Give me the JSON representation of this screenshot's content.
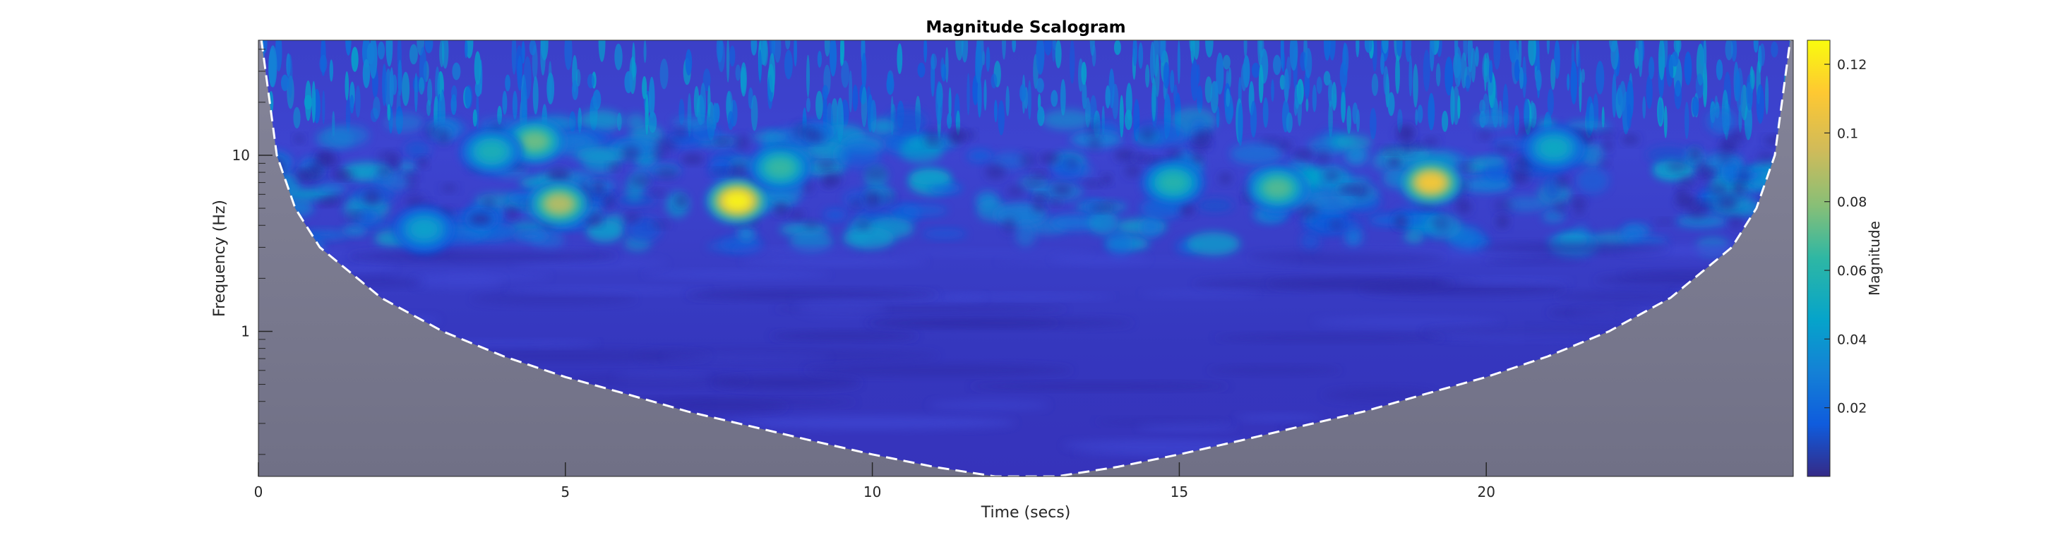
{
  "chart_data": {
    "type": "heatmap",
    "title": "Magnitude Scalogram",
    "xlabel": "Time (secs)",
    "ylabel": "Frequency (Hz)",
    "xlim": [
      0,
      25
    ],
    "ylim": [
      0.15,
      45
    ],
    "yscale": "log",
    "x_ticks": [
      0,
      5,
      10,
      15,
      20
    ],
    "x_tick_labels": [
      "0",
      "5",
      "10",
      "15",
      "20"
    ],
    "y_ticks": [
      1,
      10
    ],
    "y_tick_labels": [
      "1",
      "10"
    ],
    "colorbar": {
      "label": "Magnitude",
      "range": [
        0,
        0.127
      ],
      "ticks": [
        0.02,
        0.04,
        0.06,
        0.08,
        0.1,
        0.12
      ],
      "tick_labels": [
        "0.02",
        "0.04",
        "0.06",
        "0.08",
        "0.1",
        "0.12"
      ],
      "colormap": "parula"
    },
    "cone_of_influence": {
      "style": "white dashed",
      "outside_color": "#7a7a8e",
      "points": [
        [
          0.05,
          45
        ],
        [
          0.3,
          10
        ],
        [
          0.6,
          5
        ],
        [
          1,
          3
        ],
        [
          2,
          1.55
        ],
        [
          3,
          1
        ],
        [
          4,
          0.72
        ],
        [
          5,
          0.55
        ],
        [
          6,
          0.44
        ],
        [
          7,
          0.35
        ],
        [
          8,
          0.29
        ],
        [
          9,
          0.24
        ],
        [
          10,
          0.2
        ],
        [
          11,
          0.17
        ],
        [
          12,
          0.15
        ],
        [
          13,
          0.15
        ],
        [
          14,
          0.17
        ],
        [
          15,
          0.2
        ],
        [
          16,
          0.24
        ],
        [
          17,
          0.29
        ],
        [
          18,
          0.35
        ],
        [
          19,
          0.44
        ],
        [
          20,
          0.55
        ],
        [
          21,
          0.72
        ],
        [
          22,
          1
        ],
        [
          23,
          1.55
        ],
        [
          24,
          3
        ],
        [
          24.4,
          5
        ],
        [
          24.7,
          10
        ],
        [
          24.95,
          45
        ]
      ]
    },
    "peaks": [
      {
        "x": 7.8,
        "y": 5.5,
        "magnitude": 0.125
      },
      {
        "x": 19.1,
        "y": 7.0,
        "magnitude": 0.11
      },
      {
        "x": 4.9,
        "y": 5.3,
        "magnitude": 0.09
      },
      {
        "x": 4.5,
        "y": 12,
        "magnitude": 0.075
      },
      {
        "x": 16.6,
        "y": 6.5,
        "magnitude": 0.07
      },
      {
        "x": 14.9,
        "y": 7.0,
        "magnitude": 0.06
      },
      {
        "x": 8.5,
        "y": 8.5,
        "magnitude": 0.065
      },
      {
        "x": 3.8,
        "y": 10.5,
        "magnitude": 0.055
      },
      {
        "x": 21.1,
        "y": 11,
        "magnitude": 0.05
      },
      {
        "x": 2.7,
        "y": 3.8,
        "magnitude": 0.045
      }
    ]
  }
}
